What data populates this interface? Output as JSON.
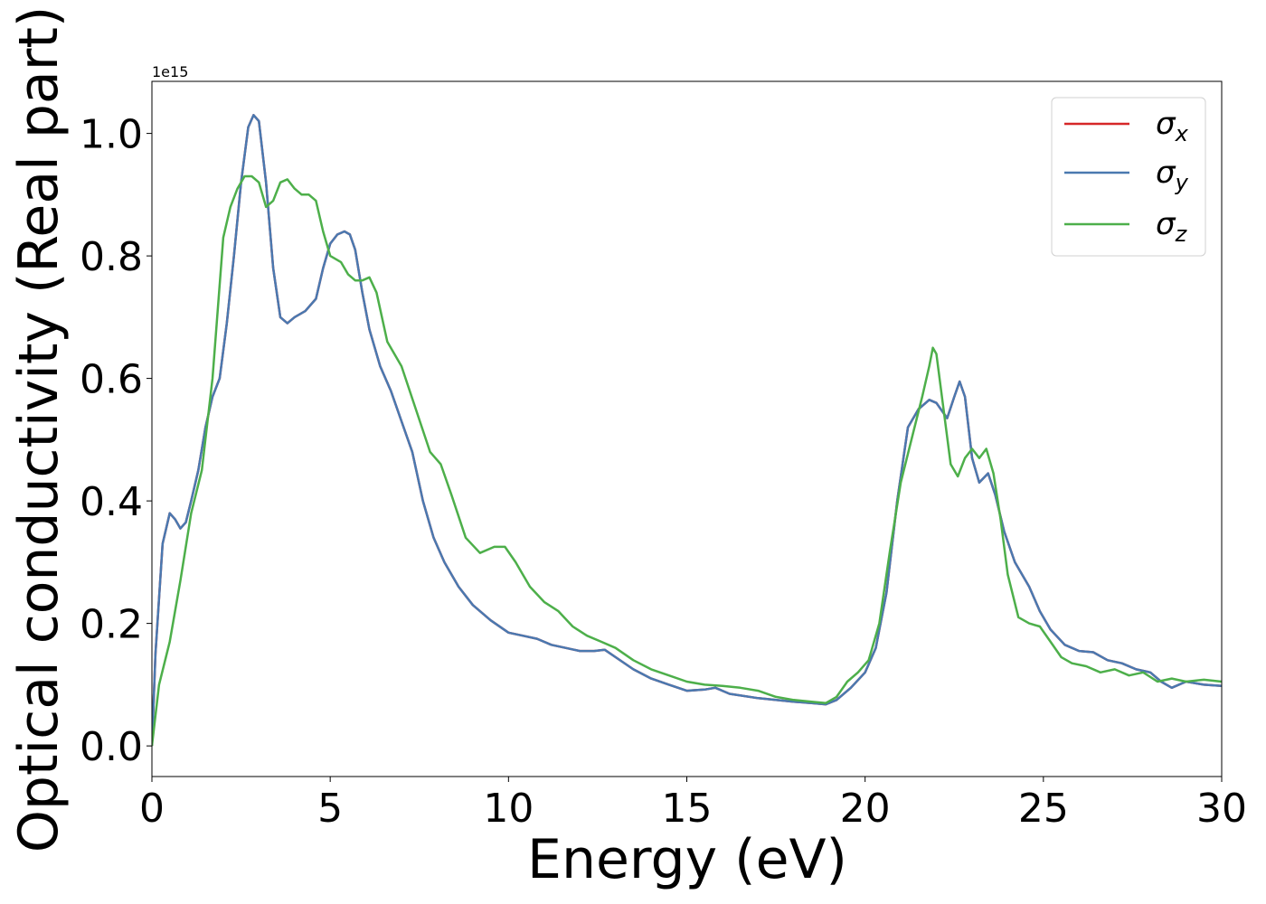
{
  "chart_data": {
    "type": "line",
    "xlabel": "Energy (eV)",
    "ylabel": "Optical conductivity (Real part)",
    "offset_text": "1e15",
    "xlim": [
      0,
      30
    ],
    "ylim": [
      -0.05,
      1.085
    ],
    "xticks": [
      0,
      5,
      10,
      15,
      20,
      25,
      30
    ],
    "xtick_labels": [
      "0",
      "5",
      "10",
      "15",
      "20",
      "25",
      "30"
    ],
    "yticks": [
      0.0,
      0.2,
      0.4,
      0.6,
      0.8,
      1.0
    ],
    "ytick_labels": [
      "0.0",
      "0.2",
      "0.4",
      "0.6",
      "0.8",
      "1.0"
    ],
    "grid": false,
    "legend_position": "top-right",
    "series": [
      {
        "name": "σx",
        "color": "#d62728",
        "x": [
          0.0,
          0.1,
          0.3,
          0.5,
          0.65,
          0.8,
          0.95,
          1.1,
          1.3,
          1.5,
          1.7,
          1.9,
          2.1,
          2.3,
          2.5,
          2.7,
          2.85,
          3.0,
          3.2,
          3.4,
          3.6,
          3.8,
          4.0,
          4.3,
          4.6,
          4.8,
          5.0,
          5.2,
          5.4,
          5.55,
          5.7,
          5.9,
          6.1,
          6.4,
          6.7,
          7.0,
          7.3,
          7.6,
          7.9,
          8.2,
          8.6,
          9.0,
          9.5,
          10.0,
          10.4,
          10.8,
          11.2,
          11.6,
          12.0,
          12.4,
          12.7,
          13.0,
          13.5,
          14.0,
          14.5,
          15.0,
          15.5,
          15.8,
          16.2,
          17.0,
          18.0,
          18.5,
          18.9,
          19.2,
          19.6,
          20.0,
          20.3,
          20.6,
          20.9,
          21.2,
          21.5,
          21.8,
          22.0,
          22.3,
          22.5,
          22.65,
          22.8,
          23.0,
          23.2,
          23.45,
          23.65,
          23.9,
          24.2,
          24.6,
          24.9,
          25.2,
          25.6,
          26.0,
          26.4,
          26.8,
          27.2,
          27.6,
          28.0,
          28.3,
          28.6,
          29.0,
          29.5,
          30.0
        ],
        "y": [
          0.0,
          0.15,
          0.33,
          0.38,
          0.37,
          0.355,
          0.365,
          0.4,
          0.45,
          0.52,
          0.57,
          0.6,
          0.69,
          0.8,
          0.92,
          1.01,
          1.03,
          1.02,
          0.92,
          0.78,
          0.7,
          0.69,
          0.7,
          0.71,
          0.73,
          0.78,
          0.82,
          0.835,
          0.84,
          0.835,
          0.81,
          0.74,
          0.68,
          0.62,
          0.58,
          0.53,
          0.48,
          0.4,
          0.34,
          0.3,
          0.26,
          0.23,
          0.205,
          0.185,
          0.18,
          0.175,
          0.165,
          0.16,
          0.155,
          0.155,
          0.157,
          0.145,
          0.125,
          0.11,
          0.1,
          0.09,
          0.092,
          0.095,
          0.085,
          0.078,
          0.072,
          0.07,
          0.068,
          0.075,
          0.095,
          0.12,
          0.16,
          0.25,
          0.4,
          0.52,
          0.55,
          0.565,
          0.56,
          0.535,
          0.57,
          0.595,
          0.57,
          0.47,
          0.43,
          0.445,
          0.41,
          0.35,
          0.3,
          0.26,
          0.22,
          0.19,
          0.165,
          0.155,
          0.153,
          0.14,
          0.135,
          0.125,
          0.12,
          0.105,
          0.095,
          0.105,
          0.1,
          0.098
        ]
      },
      {
        "name": "σy",
        "color": "#4a79b0",
        "x": [
          0.0,
          0.1,
          0.3,
          0.5,
          0.65,
          0.8,
          0.95,
          1.1,
          1.3,
          1.5,
          1.7,
          1.9,
          2.1,
          2.3,
          2.5,
          2.7,
          2.85,
          3.0,
          3.2,
          3.4,
          3.6,
          3.8,
          4.0,
          4.3,
          4.6,
          4.8,
          5.0,
          5.2,
          5.4,
          5.55,
          5.7,
          5.9,
          6.1,
          6.4,
          6.7,
          7.0,
          7.3,
          7.6,
          7.9,
          8.2,
          8.6,
          9.0,
          9.5,
          10.0,
          10.4,
          10.8,
          11.2,
          11.6,
          12.0,
          12.4,
          12.7,
          13.0,
          13.5,
          14.0,
          14.5,
          15.0,
          15.5,
          15.8,
          16.2,
          17.0,
          18.0,
          18.5,
          18.9,
          19.2,
          19.6,
          20.0,
          20.3,
          20.6,
          20.9,
          21.2,
          21.5,
          21.8,
          22.0,
          22.3,
          22.5,
          22.65,
          22.8,
          23.0,
          23.2,
          23.45,
          23.65,
          23.9,
          24.2,
          24.6,
          24.9,
          25.2,
          25.6,
          26.0,
          26.4,
          26.8,
          27.2,
          27.6,
          28.0,
          28.3,
          28.6,
          29.0,
          29.5,
          30.0
        ],
        "y": [
          0.0,
          0.15,
          0.33,
          0.38,
          0.37,
          0.355,
          0.365,
          0.4,
          0.45,
          0.52,
          0.57,
          0.6,
          0.69,
          0.8,
          0.92,
          1.01,
          1.03,
          1.02,
          0.92,
          0.78,
          0.7,
          0.69,
          0.7,
          0.71,
          0.73,
          0.78,
          0.82,
          0.835,
          0.84,
          0.835,
          0.81,
          0.74,
          0.68,
          0.62,
          0.58,
          0.53,
          0.48,
          0.4,
          0.34,
          0.3,
          0.26,
          0.23,
          0.205,
          0.185,
          0.18,
          0.175,
          0.165,
          0.16,
          0.155,
          0.155,
          0.157,
          0.145,
          0.125,
          0.11,
          0.1,
          0.09,
          0.092,
          0.095,
          0.085,
          0.078,
          0.072,
          0.07,
          0.068,
          0.075,
          0.095,
          0.12,
          0.16,
          0.25,
          0.4,
          0.52,
          0.55,
          0.565,
          0.56,
          0.535,
          0.57,
          0.595,
          0.57,
          0.47,
          0.43,
          0.445,
          0.41,
          0.35,
          0.3,
          0.26,
          0.22,
          0.19,
          0.165,
          0.155,
          0.153,
          0.14,
          0.135,
          0.125,
          0.12,
          0.105,
          0.095,
          0.105,
          0.1,
          0.098
        ]
      },
      {
        "name": "σz",
        "color": "#4daf4a",
        "x": [
          0.0,
          0.2,
          0.5,
          0.8,
          1.1,
          1.4,
          1.7,
          2.0,
          2.2,
          2.4,
          2.6,
          2.8,
          3.0,
          3.2,
          3.4,
          3.6,
          3.8,
          4.0,
          4.2,
          4.4,
          4.6,
          4.8,
          5.0,
          5.3,
          5.5,
          5.7,
          5.9,
          6.1,
          6.3,
          6.6,
          7.0,
          7.4,
          7.8,
          8.1,
          8.4,
          8.8,
          9.2,
          9.6,
          9.9,
          10.2,
          10.6,
          11.0,
          11.4,
          11.8,
          12.2,
          12.6,
          13.0,
          13.5,
          14.0,
          14.5,
          15.0,
          15.5,
          16.0,
          16.5,
          17.0,
          17.5,
          18.0,
          18.5,
          18.9,
          19.2,
          19.5,
          19.8,
          20.1,
          20.4,
          20.7,
          21.0,
          21.3,
          21.6,
          21.8,
          21.9,
          22.0,
          22.2,
          22.4,
          22.6,
          22.8,
          23.0,
          23.2,
          23.4,
          23.6,
          23.8,
          24.0,
          24.3,
          24.6,
          24.9,
          25.2,
          25.5,
          25.8,
          26.2,
          26.6,
          27.0,
          27.4,
          27.8,
          28.2,
          28.6,
          29.0,
          29.5,
          30.0
        ],
        "y": [
          0.0,
          0.1,
          0.17,
          0.27,
          0.38,
          0.45,
          0.6,
          0.83,
          0.88,
          0.91,
          0.93,
          0.93,
          0.92,
          0.88,
          0.89,
          0.92,
          0.925,
          0.91,
          0.9,
          0.9,
          0.89,
          0.84,
          0.8,
          0.79,
          0.77,
          0.76,
          0.76,
          0.765,
          0.74,
          0.66,
          0.62,
          0.55,
          0.48,
          0.46,
          0.41,
          0.34,
          0.315,
          0.325,
          0.325,
          0.3,
          0.26,
          0.235,
          0.22,
          0.195,
          0.18,
          0.17,
          0.16,
          0.14,
          0.125,
          0.115,
          0.105,
          0.1,
          0.098,
          0.095,
          0.09,
          0.08,
          0.075,
          0.072,
          0.07,
          0.08,
          0.105,
          0.12,
          0.14,
          0.2,
          0.32,
          0.43,
          0.5,
          0.57,
          0.62,
          0.65,
          0.64,
          0.55,
          0.46,
          0.44,
          0.47,
          0.485,
          0.47,
          0.485,
          0.445,
          0.37,
          0.28,
          0.21,
          0.2,
          0.195,
          0.17,
          0.145,
          0.135,
          0.13,
          0.12,
          0.125,
          0.115,
          0.12,
          0.105,
          0.11,
          0.105,
          0.108,
          0.105
        ]
      }
    ]
  }
}
